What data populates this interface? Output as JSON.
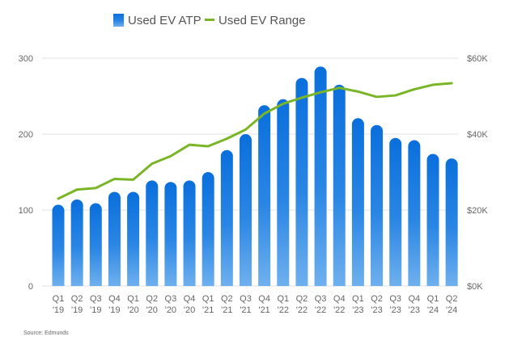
{
  "chart_data": {
    "type": "bar+line",
    "title": "",
    "categories": [
      [
        "Q1",
        "'19"
      ],
      [
        "Q2",
        "'19"
      ],
      [
        "Q3",
        "'19"
      ],
      [
        "Q4",
        "'19"
      ],
      [
        "Q1",
        "'20"
      ],
      [
        "Q2",
        "'20"
      ],
      [
        "Q3",
        "'20"
      ],
      [
        "Q4",
        "'20"
      ],
      [
        "Q1",
        "'21"
      ],
      [
        "Q2",
        "'21"
      ],
      [
        "Q3",
        "'21"
      ],
      [
        "Q4",
        "'21"
      ],
      [
        "Q1",
        "'22"
      ],
      [
        "Q2",
        "'22"
      ],
      [
        "Q3",
        "'22"
      ],
      [
        "Q4",
        "'22"
      ],
      [
        "Q1",
        "'23"
      ],
      [
        "Q2",
        "'23"
      ],
      [
        "Q3",
        "'23"
      ],
      [
        "Q4",
        "'23"
      ],
      [
        "Q1",
        "'24"
      ],
      [
        "Q2",
        "'24"
      ]
    ],
    "series": [
      {
        "name": "Used EV ATP",
        "type": "bar",
        "axis": "right",
        "unit": "$K",
        "values": [
          21.4,
          22.8,
          21.8,
          24.8,
          24.8,
          27.8,
          27.4,
          27.8,
          30.0,
          35.8,
          40.0,
          47.6,
          49.2,
          54.8,
          57.8,
          53.0,
          44.2,
          42.4,
          39.0,
          38.4,
          34.8,
          33.6
        ],
        "color": "#0a6fdc"
      },
      {
        "name": "Used EV Range",
        "type": "line",
        "axis": "left",
        "unit": "miles",
        "values": [
          115,
          127,
          129,
          141,
          140,
          161,
          171,
          186,
          184,
          194,
          206,
          227,
          240,
          248,
          255,
          261,
          256,
          249,
          251,
          259,
          265,
          267
        ],
        "color": "#7ab527"
      }
    ],
    "left_axis": {
      "range": [
        0,
        300
      ],
      "ticks": [
        "0",
        "100",
        "200",
        "300"
      ]
    },
    "right_axis": {
      "range": [
        0,
        60
      ],
      "ticks": [
        "$0K",
        "$20K",
        "$40K",
        "$60K"
      ]
    },
    "grid": true,
    "legend_position": "top-center",
    "source": "Source: Edmunds"
  }
}
